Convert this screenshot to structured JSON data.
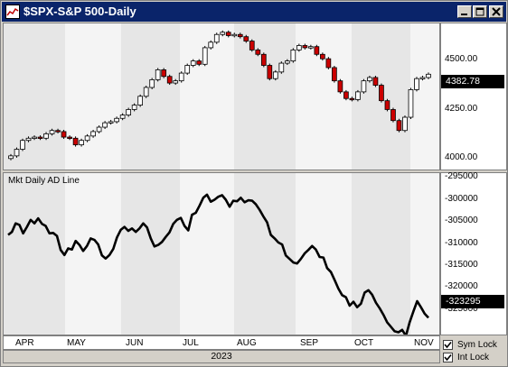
{
  "window": {
    "title": "$SPX-S&P 500-Daily",
    "controls": [
      "minimize-icon",
      "maximize-icon",
      "close-icon"
    ]
  },
  "price_panel": {
    "y_labels": [
      "4500.00",
      "4250.00",
      "4000.00"
    ],
    "last_value": "4382.78"
  },
  "ad_panel": {
    "label": "Mkt Daily AD Line",
    "y_labels": [
      "-295000",
      "-300000",
      "-305000",
      "-310000",
      "-315000",
      "-320000",
      "-325000"
    ],
    "last_value": "-323295"
  },
  "x_axis": {
    "months": [
      "APR",
      "MAY",
      "JUN",
      "JUL",
      "AUG",
      "SEP",
      "OCT",
      "NOV"
    ],
    "year": "2023"
  },
  "options": {
    "sym_lock": {
      "label": "Sym Lock",
      "checked": true
    },
    "int_lock": {
      "label": "Int Lock",
      "checked": true
    }
  },
  "colors": {
    "up_candle": "#ffffff",
    "down_candle": "#cc0000",
    "ad_line": "#000000",
    "title_bar": "#0a246a"
  },
  "chart_data": [
    {
      "type": "candlestick",
      "ylim": [
        3950,
        4620
      ],
      "series": [
        {
          "values": [
            4020,
            4050,
            4090,
            4100,
            4105,
            4100,
            4120,
            4135,
            4130,
            4105,
            4100,
            4070,
            4090,
            4110,
            4130,
            4150,
            4170,
            4175,
            4190,
            4205,
            4230,
            4250,
            4290,
            4330,
            4365,
            4410,
            4380,
            4350,
            4360,
            4395,
            4430,
            4450,
            4435,
            4510,
            4535,
            4570,
            4580,
            4565,
            4570,
            4560,
            4540,
            4500,
            4480,
            4430,
            4370,
            4400,
            4440,
            4450,
            4500,
            4520,
            4510,
            4515,
            4480,
            4460,
            4420,
            4360,
            4310,
            4280,
            4275,
            4310,
            4360,
            4375,
            4340,
            4270,
            4230,
            4180,
            4135,
            4195,
            4320,
            4370,
            4375,
            4390
          ]
        }
      ]
    },
    {
      "type": "line",
      "ylim": [
        -327000,
        -294500
      ],
      "series": [
        {
          "name": "Mkt Daily AD Line",
          "values": [
            -306800,
            -306200,
            -304500,
            -304800,
            -306500,
            -305200,
            -303800,
            -304500,
            -303500,
            -304600,
            -305000,
            -306500,
            -306400,
            -307000,
            -309800,
            -310800,
            -309500,
            -309700,
            -308000,
            -308800,
            -310000,
            -309000,
            -307500,
            -307800,
            -308700,
            -310900,
            -311500,
            -310800,
            -309600,
            -307300,
            -305800,
            -305200,
            -306000,
            -305500,
            -306200,
            -305500,
            -304500,
            -305300,
            -307500,
            -309100,
            -308800,
            -308200,
            -307200,
            -306300,
            -304600,
            -303800,
            -303400,
            -305000,
            -305900,
            -302800,
            -302400,
            -301000,
            -299400,
            -298800,
            -300200,
            -299800,
            -299200,
            -298900,
            -299800,
            -301200,
            -300000,
            -300100,
            -299400,
            -300300,
            -299900,
            -300000,
            -300700,
            -301800,
            -303100,
            -304300,
            -306800,
            -307500,
            -308300,
            -308700,
            -310900,
            -311600,
            -312300,
            -312500,
            -311600,
            -310500,
            -309800,
            -309000,
            -309700,
            -311200,
            -311300,
            -313400,
            -314200,
            -315800,
            -317500,
            -318800,
            -319200,
            -320900,
            -320100,
            -321200,
            -320500,
            -318300,
            -317800,
            -318700,
            -320300,
            -321400,
            -322700,
            -324200,
            -325100,
            -326000,
            -326200,
            -325700,
            -326900,
            -324200,
            -322000,
            -320000,
            -321200,
            -322500,
            -323295
          ]
        }
      ]
    }
  ]
}
